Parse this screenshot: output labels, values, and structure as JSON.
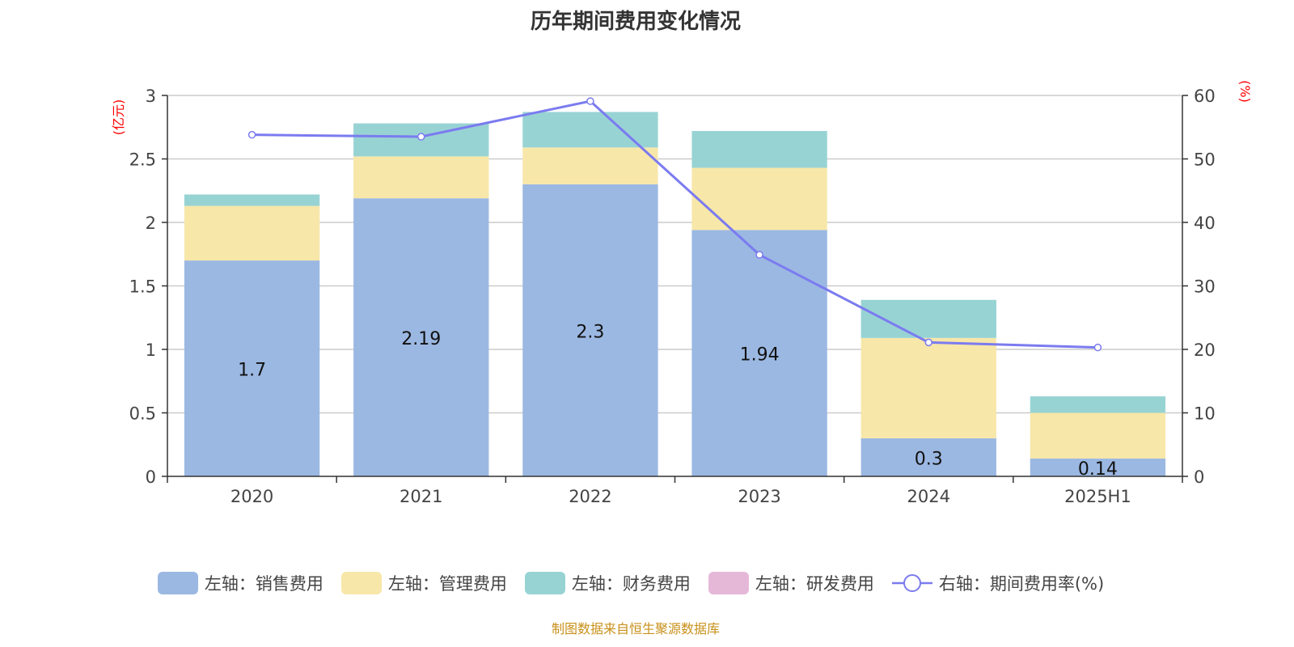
{
  "chart_data": {
    "type": "bar",
    "title": "历年期间费用变化情况",
    "categories": [
      "2020",
      "2021",
      "2022",
      "2023",
      "2024",
      "2025H1"
    ],
    "left_axis": {
      "label": "(亿元)",
      "ylim": [
        0,
        3
      ],
      "ticks": [
        "0",
        "0.5",
        "1",
        "1.5",
        "2",
        "2.5",
        "3"
      ]
    },
    "right_axis": {
      "label": "(%)",
      "ylim": [
        0,
        60
      ],
      "ticks": [
        "0",
        "10",
        "20",
        "30",
        "40",
        "50",
        "60"
      ]
    },
    "stacked": true,
    "grid": true,
    "legend_position": "bottom",
    "series": [
      {
        "name": "左轴：销售费用",
        "type": "bar",
        "color": "#9bb8e2",
        "values": [
          1.7,
          2.19,
          2.3,
          1.94,
          0.3,
          0.14
        ],
        "labels": [
          "1.7",
          "2.19",
          "2.3",
          "1.94",
          "0.3",
          "0.14"
        ]
      },
      {
        "name": "左轴：管理费用",
        "type": "bar",
        "color": "#f7e7a9",
        "values": [
          0.43,
          0.33,
          0.29,
          0.49,
          0.79,
          0.36
        ]
      },
      {
        "name": "左轴：财务费用",
        "type": "bar",
        "color": "#98d3d4",
        "values": [
          0.09,
          0.26,
          0.28,
          0.29,
          0.3,
          0.13
        ]
      },
      {
        "name": "左轴：研发费用",
        "type": "bar",
        "color": "#e6b8d8",
        "values": [
          0,
          0,
          0,
          0,
          0,
          0
        ]
      },
      {
        "name": "右轴：期间费用率(%)",
        "type": "line",
        "color": "#7b7bf0",
        "values": [
          53.8,
          53.5,
          59.1,
          34.9,
          21.1,
          20.3
        ]
      }
    ]
  },
  "source": "制图数据来自恒生聚源数据库"
}
